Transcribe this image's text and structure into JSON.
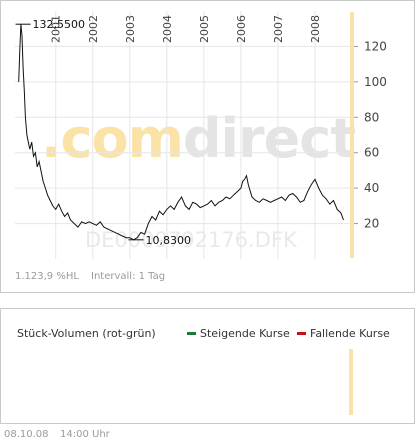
{
  "watermark": {
    "brand_dot": ".com",
    "brand_rest": "direct",
    "isin": "DE0009792176.DFK"
  },
  "price_chart": {
    "performance_text": "1.123,9 %HL",
    "interval_text": "Intervall: 1 Tag"
  },
  "volume_chart": {
    "title": "Stück-Volumen (rot-grün)",
    "legend": [
      {
        "label": "Steigende Kurse",
        "color": "#1b7a3a"
      },
      {
        "label": "Fallende Kurse",
        "color": "#c8101c"
      }
    ]
  },
  "footer": {
    "date": "08.10.08",
    "time": "14:00 Uhr"
  },
  "colors": {
    "line": "#111111",
    "gridline": "#e6e6e6",
    "accent": "#fbe3a8",
    "brand_orange": "#f5a623",
    "brand_gray": "#d8d8d8"
  },
  "chart_data": {
    "type": "line",
    "title": "",
    "xlabel": "",
    "ylabel": "",
    "ylim": [
      0,
      140
    ],
    "xlim": [
      1999.9,
      2009.0
    ],
    "y_ticks": [
      20,
      40,
      60,
      80,
      100,
      120
    ],
    "x_tick_labels": [
      {
        "label": "2001",
        "x": 2001.0
      },
      {
        "label": "2002",
        "x": 2002.0
      },
      {
        "label": "2003",
        "x": 2003.0
      },
      {
        "label": "2004",
        "x": 2004.0
      },
      {
        "label": "2005",
        "x": 2005.0
      },
      {
        "label": "2006",
        "x": 2006.0
      },
      {
        "label": "2007",
        "x": 2007.0
      },
      {
        "label": "2008",
        "x": 2008.0
      }
    ],
    "annotations": [
      {
        "text": "132,5500",
        "x": 2000.05,
        "y": 132.55
      },
      {
        "text": "10,8300",
        "x": 2003.1,
        "y": 10.83
      }
    ],
    "series": [
      {
        "x": [
          2000.0,
          2000.03,
          2000.06,
          2000.09,
          2000.12,
          2000.15,
          2000.18,
          2000.22,
          2000.26,
          2000.3,
          2000.35,
          2000.4,
          2000.45,
          2000.5,
          2000.55,
          2000.6,
          2000.66,
          2000.72,
          2000.78,
          2000.85,
          2000.92,
          2001.0,
          2001.08,
          2001.16,
          2001.24,
          2001.32,
          2001.4,
          2001.5,
          2001.6,
          2001.7,
          2001.8,
          2001.9,
          2002.0,
          2002.1,
          2002.2,
          2002.3,
          2002.4,
          2002.5,
          2002.6,
          2002.7,
          2002.8,
          2002.9,
          2003.0,
          2003.1,
          2003.2,
          2003.3,
          2003.4,
          2003.5,
          2003.6,
          2003.7,
          2003.8,
          2003.9,
          2004.0,
          2004.1,
          2004.2,
          2004.3,
          2004.4,
          2004.5,
          2004.6,
          2004.7,
          2004.8,
          2004.9,
          2005.0,
          2005.1,
          2005.2,
          2005.3,
          2005.4,
          2005.5,
          2005.6,
          2005.7,
          2005.8,
          2005.9,
          2006.0,
          2006.05,
          2006.1,
          2006.15,
          2006.2,
          2006.3,
          2006.4,
          2006.5,
          2006.6,
          2006.7,
          2006.8,
          2006.9,
          2007.0,
          2007.1,
          2007.2,
          2007.3,
          2007.4,
          2007.5,
          2007.6,
          2007.7,
          2007.8,
          2007.9,
          2008.0,
          2008.1,
          2008.2,
          2008.3,
          2008.4,
          2008.5,
          2008.6,
          2008.7,
          2008.77
        ],
        "y": [
          100,
          118,
          132.55,
          126,
          108,
          95,
          80,
          70,
          66,
          62,
          66,
          58,
          60,
          52,
          55,
          50,
          44,
          40,
          36,
          33,
          30,
          28,
          31,
          27,
          24,
          26,
          22,
          20,
          18,
          21,
          20,
          21,
          20,
          19,
          21,
          18,
          17,
          16,
          15,
          14,
          13,
          12,
          12,
          10.83,
          12,
          15,
          14,
          20,
          24,
          22,
          27,
          25,
          28,
          30,
          28,
          32,
          35,
          30,
          28,
          32,
          31,
          29,
          30,
          31,
          33,
          30,
          32,
          33,
          35,
          34,
          36,
          38,
          40,
          44,
          45,
          47,
          42,
          35,
          33,
          32,
          34,
          33,
          32,
          33,
          34,
          35,
          33,
          36,
          37,
          35,
          32,
          33,
          38,
          42,
          45,
          40,
          36,
          34,
          31,
          33,
          28,
          26,
          22
        ]
      }
    ]
  }
}
